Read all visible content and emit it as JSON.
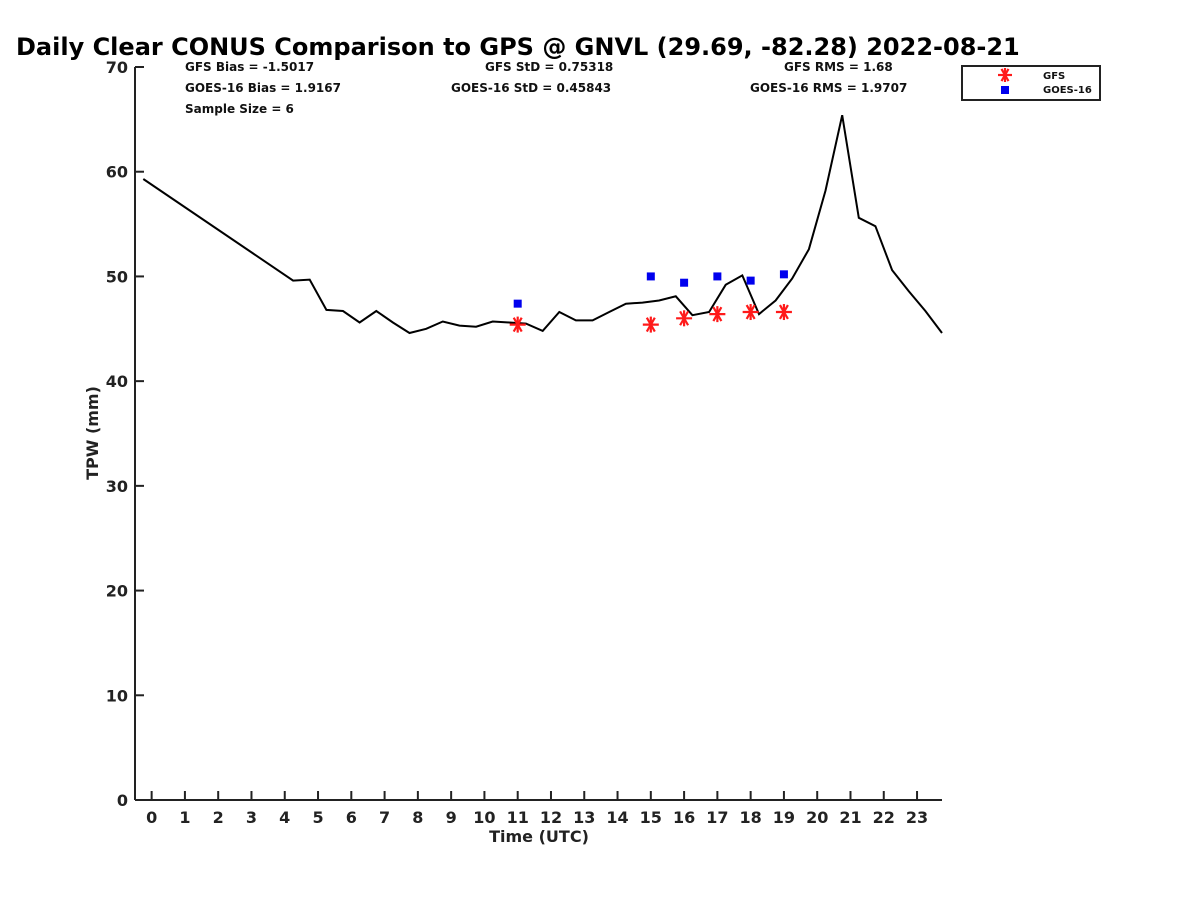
{
  "chart_data": {
    "type": "line",
    "title": "Daily Clear CONUS Comparison to GPS @ GNVL (29.69, -82.28) 2022-08-21",
    "xlabel": "Time (UTC)",
    "ylabel": "TPW (mm)",
    "xlim": [
      -0.5,
      23.75
    ],
    "ylim": [
      0,
      70
    ],
    "x_ticks": [
      0,
      1,
      2,
      3,
      4,
      5,
      6,
      7,
      8,
      9,
      10,
      11,
      12,
      13,
      14,
      15,
      16,
      17,
      18,
      19,
      20,
      21,
      22,
      23
    ],
    "y_ticks": [
      0,
      10,
      20,
      30,
      40,
      50,
      60,
      70
    ],
    "grid": false,
    "legend_position": "top-right",
    "stats": {
      "gfs_bias": "GFS Bias = -1.5017",
      "goes_bias": "GOES-16 Bias = 1.9167",
      "sample_size": "Sample Size = 6",
      "gfs_std": "GFS StD = 0.75318",
      "goes_std": "GOES-16 StD = 0.45843",
      "gfs_rms": "GFS RMS = 1.68",
      "goes_rms": "GOES-16 RMS = 1.9707"
    },
    "series": [
      {
        "kind": "line",
        "color": "#000000",
        "x": [
          -0.25,
          4.25,
          4.75,
          5.25,
          5.75,
          6.25,
          6.75,
          7.25,
          7.75,
          8.25,
          8.75,
          9.25,
          9.75,
          10.25,
          10.75,
          11.25,
          11.75,
          12.25,
          12.75,
          13.25,
          13.75,
          14.25,
          14.75,
          15.25,
          15.75,
          16.25,
          16.75,
          17.25,
          17.75,
          18.25,
          18.75,
          19.25,
          19.75,
          20.25,
          20.75,
          21.25,
          21.75,
          22.25,
          22.75,
          23.25,
          23.75
        ],
        "y": [
          59.3,
          49.6,
          49.7,
          46.8,
          46.7,
          45.6,
          46.7,
          45.6,
          44.6,
          45.0,
          45.7,
          45.3,
          45.2,
          45.7,
          45.6,
          45.5,
          44.8,
          46.6,
          45.8,
          45.8,
          46.6,
          47.4,
          47.5,
          47.7,
          48.1,
          46.3,
          46.6,
          49.2,
          50.1,
          46.4,
          47.7,
          49.8,
          52.6,
          58.2,
          65.4,
          55.6,
          54.8,
          50.6,
          48.6,
          46.7,
          44.6
        ]
      },
      {
        "name": "GFS",
        "kind": "scatter",
        "marker": "asterisk",
        "color": "#ff1a1a",
        "x": [
          11,
          15,
          16,
          17,
          18,
          19
        ],
        "y": [
          45.4,
          45.4,
          46.0,
          46.4,
          46.6,
          46.6
        ]
      },
      {
        "name": "GOES-16",
        "kind": "scatter",
        "marker": "square",
        "color": "#0000ee",
        "x": [
          11,
          15,
          16,
          17,
          18,
          19
        ],
        "y": [
          47.4,
          50.0,
          49.4,
          50.0,
          49.6,
          50.2
        ]
      }
    ]
  }
}
